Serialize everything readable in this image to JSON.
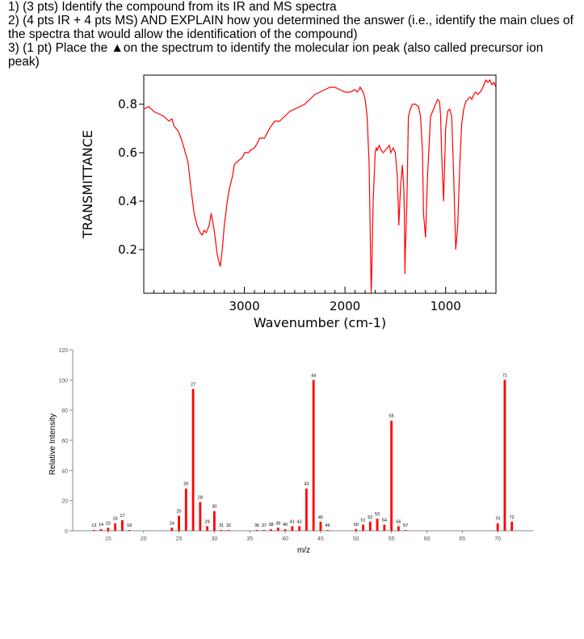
{
  "questions": [
    "1) (3 pts) Identify the compound from its IR and MS spectra",
    "2) (4 pts IR + 4 pts MS) AND EXPLAIN how you determined the answer (i.e., identify the main clues of the spectra that would allow the identification of the compound)",
    "3) (1 pt) Place the ▲on the spectrum to identify the molecular ion peak (also called precursor ion peak)"
  ],
  "colors": {
    "series": "#ff0000",
    "axis": "#000000",
    "ms_axis": "#888888"
  },
  "chart_data": [
    {
      "type": "line",
      "xlabel": "Wavenumber (cm-1)",
      "ylabel": "TRANSMITTANCE",
      "xlim": [
        4000,
        500
      ],
      "ylim": [
        0.02,
        0.92
      ],
      "xticks": [
        3000,
        2000,
        1000
      ],
      "yticks": [
        0.2,
        0.4,
        0.6,
        0.8
      ],
      "grid": false,
      "series": [
        {
          "x": [
            4000,
            3950,
            3900,
            3850,
            3800,
            3750,
            3720,
            3700,
            3660,
            3630,
            3600,
            3560,
            3530,
            3500,
            3470,
            3440,
            3420,
            3400,
            3380,
            3350,
            3330,
            3300,
            3270,
            3240,
            3220,
            3200,
            3170,
            3150,
            3120,
            3100,
            3080,
            3050,
            3020,
            3000,
            2980,
            2960,
            2940,
            2900,
            2870,
            2850,
            2800,
            2750,
            2700,
            2650,
            2600,
            2550,
            2500,
            2450,
            2400,
            2350,
            2300,
            2250,
            2200,
            2150,
            2100,
            2050,
            2000,
            1950,
            1900,
            1880,
            1860,
            1850,
            1820,
            1800,
            1780,
            1760,
            1745,
            1740,
            1735,
            1720,
            1700,
            1690,
            1680,
            1660,
            1650,
            1640,
            1620,
            1600,
            1580,
            1560,
            1545,
            1520,
            1500,
            1480,
            1465,
            1450,
            1430,
            1415,
            1410,
            1405,
            1400,
            1385,
            1370,
            1350,
            1330,
            1300,
            1270,
            1250,
            1230,
            1220,
            1200,
            1180,
            1150,
            1120,
            1100,
            1080,
            1060,
            1050,
            1040,
            1020,
            1000,
            980,
            960,
            940,
            920,
            900,
            880,
            860,
            840,
            820,
            800,
            780,
            760,
            740,
            720,
            700,
            680,
            660,
            640,
            620,
            600,
            580,
            560,
            540,
            520,
            500
          ],
          "y": [
            0.78,
            0.79,
            0.77,
            0.76,
            0.75,
            0.73,
            0.74,
            0.71,
            0.69,
            0.66,
            0.62,
            0.56,
            0.45,
            0.35,
            0.3,
            0.27,
            0.26,
            0.28,
            0.27,
            0.3,
            0.35,
            0.28,
            0.18,
            0.13,
            0.2,
            0.3,
            0.4,
            0.45,
            0.5,
            0.55,
            0.56,
            0.57,
            0.58,
            0.6,
            0.6,
            0.6,
            0.61,
            0.62,
            0.64,
            0.66,
            0.66,
            0.7,
            0.73,
            0.73,
            0.75,
            0.77,
            0.78,
            0.79,
            0.8,
            0.82,
            0.84,
            0.85,
            0.86,
            0.87,
            0.87,
            0.86,
            0.85,
            0.85,
            0.86,
            0.85,
            0.86,
            0.87,
            0.85,
            0.82,
            0.75,
            0.55,
            0.15,
            0.02,
            0.1,
            0.4,
            0.6,
            0.62,
            0.61,
            0.63,
            0.62,
            0.61,
            0.6,
            0.61,
            0.62,
            0.63,
            0.6,
            0.62,
            0.6,
            0.5,
            0.3,
            0.45,
            0.55,
            0.45,
            0.35,
            0.1,
            0.2,
            0.4,
            0.75,
            0.78,
            0.8,
            0.8,
            0.79,
            0.75,
            0.6,
            0.35,
            0.25,
            0.5,
            0.75,
            0.78,
            0.8,
            0.82,
            0.81,
            0.75,
            0.6,
            0.4,
            0.7,
            0.77,
            0.78,
            0.75,
            0.5,
            0.2,
            0.3,
            0.55,
            0.72,
            0.78,
            0.81,
            0.82,
            0.83,
            0.82,
            0.84,
            0.85,
            0.84,
            0.85,
            0.86,
            0.88,
            0.9,
            0.89,
            0.9,
            0.88,
            0.89,
            0.87
          ]
        }
      ]
    },
    {
      "type": "bar",
      "xlabel": "m/z",
      "ylabel": "Relative Intensity",
      "xlim": [
        10,
        75
      ],
      "ylim": [
        0,
        120
      ],
      "xticks": [
        15,
        20,
        25,
        30,
        35,
        40,
        45,
        50,
        55,
        60,
        65,
        70
      ],
      "yticks": [
        0,
        20,
        40,
        60,
        80,
        100,
        120
      ],
      "grid": false,
      "x": [
        13,
        14,
        15,
        16,
        17,
        18,
        24,
        25,
        26,
        27,
        28,
        29,
        30,
        31,
        32,
        36,
        37,
        38,
        39,
        40,
        41,
        42,
        43,
        44,
        45,
        46,
        50,
        51,
        52,
        53,
        54,
        55,
        56,
        57,
        70,
        71,
        72
      ],
      "values": [
        0.5,
        1,
        2,
        5,
        7,
        0.5,
        2,
        10,
        28,
        94,
        19,
        3,
        13,
        0.5,
        0.5,
        0.5,
        0.5,
        1,
        2,
        1,
        3,
        3,
        28,
        100,
        6,
        0.5,
        1,
        4,
        6,
        8,
        4,
        73,
        3,
        0.5,
        5,
        100,
        6
      ],
      "labels": [
        "13",
        "14",
        "15",
        "16",
        "17",
        "18",
        "24",
        "25",
        "26",
        "27",
        "28",
        "29",
        "30",
        "31",
        "32",
        "36",
        "37",
        "38",
        "39",
        "40",
        "41",
        "42",
        "43",
        "44",
        "45",
        "46",
        "50",
        "51",
        "52",
        "53",
        "54",
        "55",
        "56",
        "57",
        "70",
        "71",
        "72"
      ]
    }
  ]
}
